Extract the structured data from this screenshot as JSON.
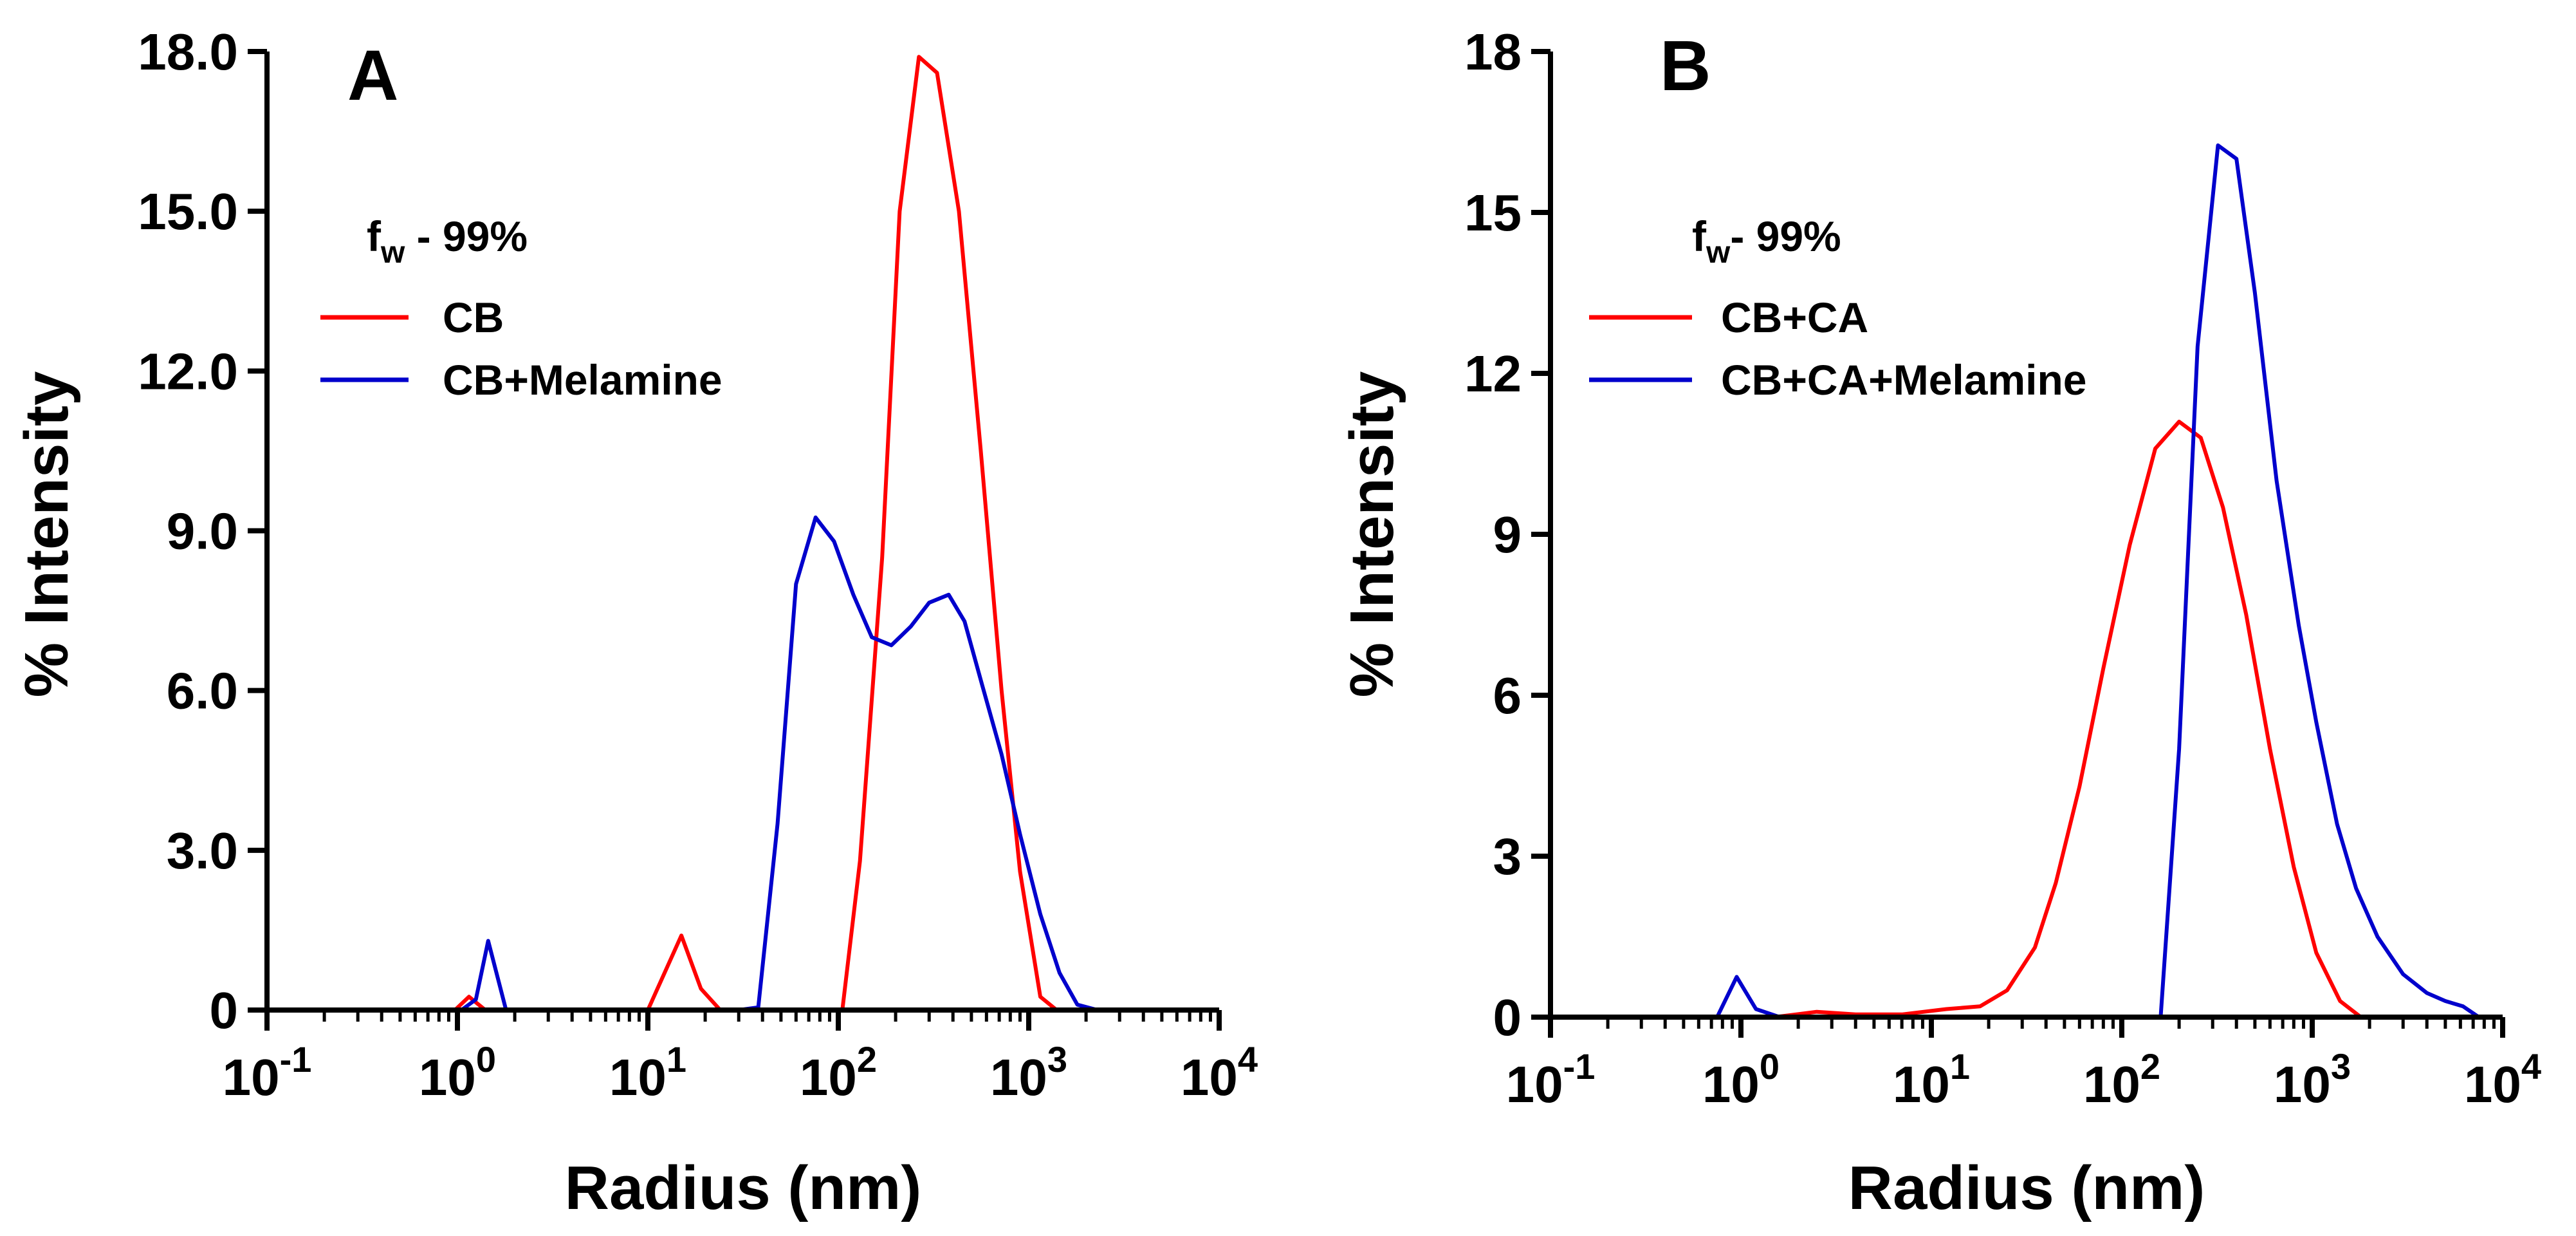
{
  "chart_data": [
    {
      "type": "line",
      "panel_label": "A",
      "xscale": "log",
      "xlim": [
        0.1,
        10000
      ],
      "ylim": [
        0,
        18
      ],
      "xlabel": "Radius (nm)",
      "ylabel": "% Intensity",
      "x_tick_values": [
        0.1,
        1,
        10,
        100,
        1000,
        10000
      ],
      "x_ticks": [
        {
          "base": "10",
          "exp": "-1"
        },
        {
          "base": "10",
          "exp": "0"
        },
        {
          "base": "10",
          "exp": "1"
        },
        {
          "base": "10",
          "exp": "2"
        },
        {
          "base": "10",
          "exp": "3"
        },
        {
          "base": "10",
          "exp": "4"
        }
      ],
      "y_tick_values": [
        0,
        3,
        6,
        9,
        12,
        15,
        18
      ],
      "y_tick_labels": [
        "0",
        "3.0",
        "6.0",
        "9.0",
        "12.0",
        "15.0",
        "18.0"
      ],
      "annotation": {
        "main": "f",
        "sub": "w",
        "rest": " - 99%"
      },
      "series": [
        {
          "name": "CB",
          "color": "#ff0000",
          "points": [
            [
              0.1,
              0
            ],
            [
              0.97,
              0
            ],
            [
              1.15,
              0.25
            ],
            [
              1.4,
              0
            ],
            [
              10,
              0
            ],
            [
              15,
              1.4
            ],
            [
              19,
              0.4
            ],
            [
              24,
              0
            ],
            [
              95,
              0
            ],
            [
              105,
              0
            ],
            [
              130,
              2.8
            ],
            [
              170,
              8.5
            ],
            [
              210,
              15
            ],
            [
              265,
              17.9
            ],
            [
              330,
              17.6
            ],
            [
              430,
              15
            ],
            [
              560,
              10.5
            ],
            [
              720,
              6
            ],
            [
              900,
              2.6
            ],
            [
              1150,
              0.25
            ],
            [
              1400,
              0
            ],
            [
              10000,
              0
            ]
          ]
        },
        {
          "name": "CB+Melamine",
          "color": "#0000cc",
          "points": [
            [
              0.1,
              0
            ],
            [
              1.05,
              0
            ],
            [
              1.25,
              0.2
            ],
            [
              1.45,
              1.3
            ],
            [
              1.8,
              0
            ],
            [
              30,
              0
            ],
            [
              38,
              0.05
            ],
            [
              48,
              3.5
            ],
            [
              60,
              8
            ],
            [
              76,
              9.25
            ],
            [
              95,
              8.8
            ],
            [
              120,
              7.8
            ],
            [
              150,
              7.0
            ],
            [
              190,
              6.85
            ],
            [
              240,
              7.2
            ],
            [
              300,
              7.65
            ],
            [
              380,
              7.8
            ],
            [
              460,
              7.3
            ],
            [
              570,
              6.1
            ],
            [
              720,
              4.8
            ],
            [
              900,
              3.3
            ],
            [
              1150,
              1.8
            ],
            [
              1450,
              0.7
            ],
            [
              1800,
              0.1
            ],
            [
              2300,
              0
            ],
            [
              10000,
              0
            ]
          ]
        }
      ]
    },
    {
      "type": "line",
      "panel_label": "B",
      "xscale": "log",
      "xlim": [
        0.1,
        10000
      ],
      "ylim": [
        0,
        18
      ],
      "xlabel": "Radius (nm)",
      "ylabel": "% Intensity",
      "x_tick_values": [
        0.1,
        1,
        10,
        100,
        1000,
        10000
      ],
      "x_ticks": [
        {
          "base": "10",
          "exp": "-1"
        },
        {
          "base": "10",
          "exp": "0"
        },
        {
          "base": "10",
          "exp": "1"
        },
        {
          "base": "10",
          "exp": "2"
        },
        {
          "base": "10",
          "exp": "3"
        },
        {
          "base": "10",
          "exp": "4"
        }
      ],
      "y_tick_values": [
        0,
        3,
        6,
        9,
        12,
        15,
        18
      ],
      "y_tick_labels": [
        "0",
        "3",
        "6",
        "9",
        "12",
        "15",
        "18"
      ],
      "annotation": {
        "main": "f",
        "sub": "w",
        "rest": "- 99%"
      },
      "series": [
        {
          "name": "CB+CA",
          "color": "#ff0000",
          "points": [
            [
              0.1,
              0
            ],
            [
              1.5,
              0
            ],
            [
              2.5,
              0.1
            ],
            [
              4,
              0.05
            ],
            [
              7,
              0.05
            ],
            [
              12,
              0.15
            ],
            [
              18,
              0.2
            ],
            [
              25,
              0.5
            ],
            [
              35,
              1.3
            ],
            [
              45,
              2.5
            ],
            [
              60,
              4.3
            ],
            [
              80,
              6.5
            ],
            [
              110,
              8.8
            ],
            [
              150,
              10.6
            ],
            [
              200,
              11.1
            ],
            [
              260,
              10.8
            ],
            [
              340,
              9.5
            ],
            [
              450,
              7.5
            ],
            [
              600,
              5.0
            ],
            [
              800,
              2.8
            ],
            [
              1050,
              1.2
            ],
            [
              1400,
              0.3
            ],
            [
              1800,
              0
            ],
            [
              10000,
              0
            ]
          ]
        },
        {
          "name": "CB+CA+Melamine",
          "color": "#0000cc",
          "points": [
            [
              0.1,
              0
            ],
            [
              0.75,
              0
            ],
            [
              0.95,
              0.75
            ],
            [
              1.2,
              0.15
            ],
            [
              1.6,
              0
            ],
            [
              160,
              0
            ],
            [
              200,
              5
            ],
            [
              250,
              12.5
            ],
            [
              320,
              16.25
            ],
            [
              400,
              16
            ],
            [
              500,
              13.5
            ],
            [
              650,
              10
            ],
            [
              850,
              7.3
            ],
            [
              1050,
              5.5
            ],
            [
              1350,
              3.6
            ],
            [
              1700,
              2.4
            ],
            [
              2200,
              1.5
            ],
            [
              3000,
              0.8
            ],
            [
              4000,
              0.45
            ],
            [
              5000,
              0.3
            ],
            [
              6200,
              0.2
            ],
            [
              7500,
              0
            ],
            [
              10000,
              0
            ]
          ]
        }
      ]
    }
  ]
}
